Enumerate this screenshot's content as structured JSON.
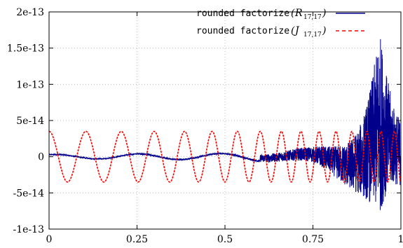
{
  "chart_data": {
    "type": "line",
    "title": "",
    "xlabel": "",
    "ylabel": "",
    "xlim": [
      0,
      1
    ],
    "ylim": [
      -1e-13,
      2e-13
    ],
    "grid": true,
    "legend_position": "top-right",
    "x_ticks": [
      {
        "value": 0,
        "label": "0"
      },
      {
        "value": 0.25,
        "label": "0.25"
      },
      {
        "value": 0.5,
        "label": "0.5"
      },
      {
        "value": 0.75,
        "label": "0.75"
      },
      {
        "value": 1,
        "label": "1"
      }
    ],
    "y_ticks": [
      {
        "value": -1e-13,
        "label": "-1e-13"
      },
      {
        "value": -5e-14,
        "label": "-5e-14"
      },
      {
        "value": 0,
        "label": "0"
      },
      {
        "value": 5e-14,
        "label": "5e-14"
      },
      {
        "value": 1e-13,
        "label": "1e-13"
      },
      {
        "value": 1.5e-13,
        "label": "1.5e-13"
      },
      {
        "value": 2e-13,
        "label": "2e-13"
      }
    ],
    "series": [
      {
        "name": "rounded factorize (R17,17)",
        "legend_text": "rounded factorize",
        "legend_symbol": "R",
        "legend_subscript": "17,17",
        "color": "#00008b",
        "style": "solid",
        "x": [
          0,
          0.05,
          0.1,
          0.15,
          0.2,
          0.25,
          0.3,
          0.35,
          0.4,
          0.45,
          0.5,
          0.55,
          0.6,
          0.65,
          0.7,
          0.75,
          0.8,
          0.85,
          0.88,
          0.9,
          0.92,
          0.94,
          0.96,
          0.98,
          1.0
        ],
        "envelope": [
          3e-15,
          3e-15,
          3e-15,
          3e-15,
          3.5e-15,
          4e-15,
          4e-15,
          4e-15,
          4e-15,
          4e-15,
          4.5e-15,
          5e-15,
          6e-15,
          7e-15,
          9e-15,
          1.2e-14,
          2e-14,
          3.5e-14,
          5e-14,
          7e-14,
          1e-13,
          1.4e-13,
          9e-14,
          6e-14,
          5e-14
        ]
      },
      {
        "name": "rounded factorize (J17,17)",
        "legend_text": "rounded factorize",
        "legend_symbol": "J",
        "legend_subscript": "17,17",
        "color": "#ff0000",
        "style": "dashed",
        "x": [
          0,
          0.05,
          0.1,
          0.15,
          0.2,
          0.25,
          0.3,
          0.35,
          0.4,
          0.45,
          0.5,
          0.55,
          0.6,
          0.65,
          0.7,
          0.75,
          0.8,
          0.85,
          0.9,
          0.95,
          1.0
        ],
        "amplitude": [
          3.5e-14,
          3.5e-14,
          3.5e-14,
          3.5e-14,
          3.5e-14,
          3.5e-14,
          3.5e-14,
          3.5e-14,
          3.5e-14,
          3.5e-14,
          3.5e-14,
          3.5e-14,
          3.5e-14,
          3.5e-14,
          3.5e-14,
          3.5e-14,
          3.5e-14,
          3.5e-14,
          3.5e-14,
          3.5e-14,
          3.5e-14
        ]
      }
    ]
  },
  "legend": {
    "open_paren": "(",
    "close_paren": ")"
  },
  "colors": {
    "series_blue": "#00008b",
    "series_red": "#ff0000",
    "grid": "#b0b0b0"
  }
}
